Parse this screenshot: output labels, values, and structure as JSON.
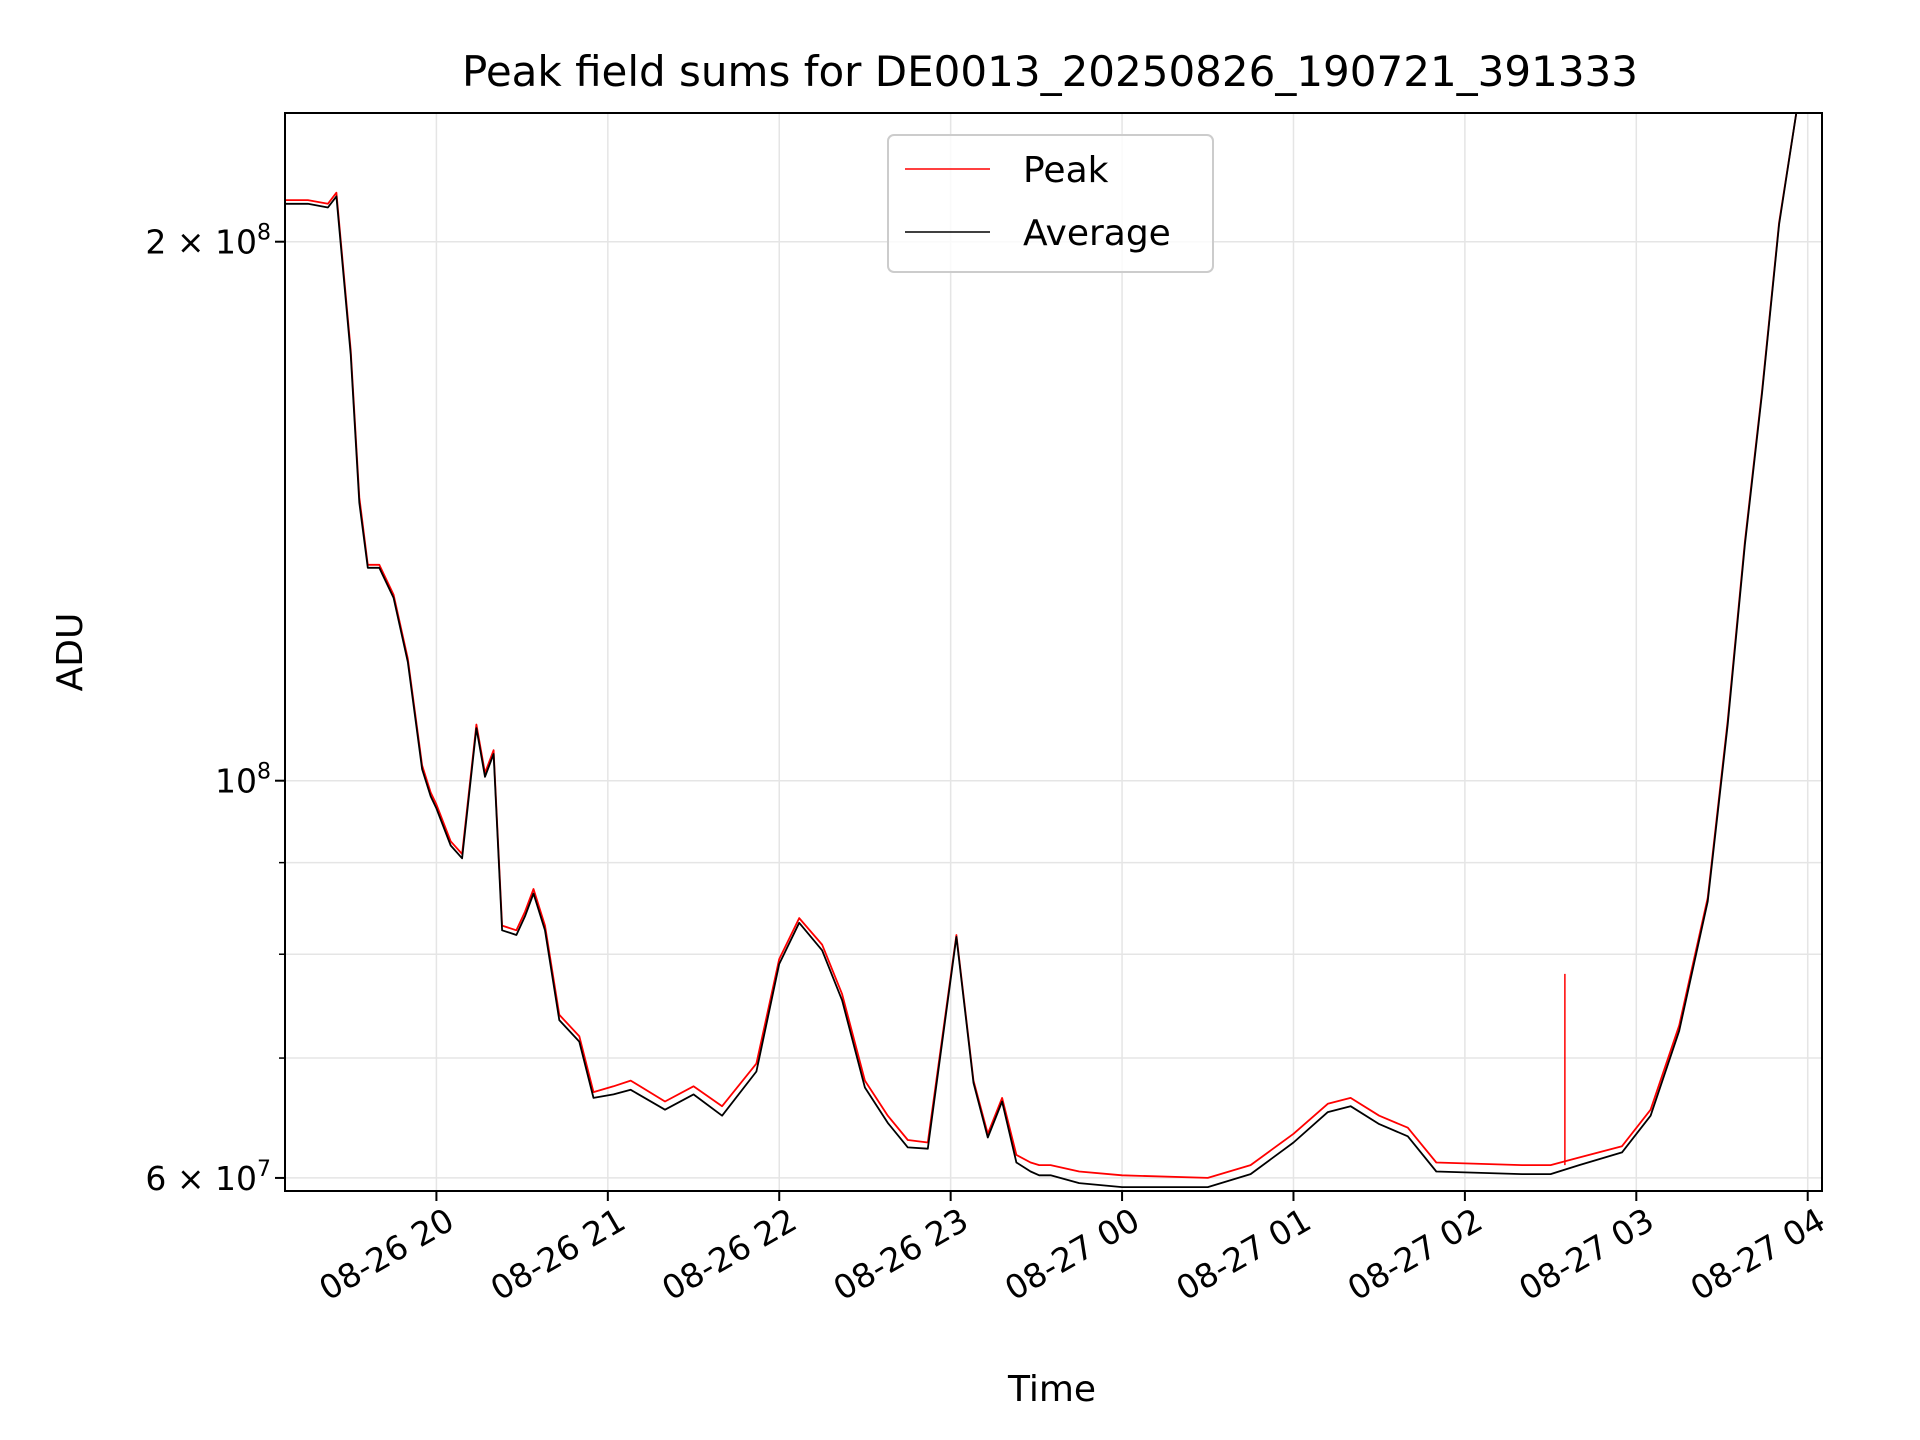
{
  "chart_data": {
    "type": "line",
    "title": "Peak field sums for DE0013_20250826_190721_391333",
    "xlabel": "Time",
    "ylabel": "ADU",
    "y_scale": "log",
    "xlim": [
      "2025-08-26 19:07",
      "2025-08-27 04:05"
    ],
    "ylim": [
      59000000,
      236000000
    ],
    "grid": true,
    "legend_position": "upper center",
    "x_ticks": [
      {
        "label": "08-26 20",
        "t": "2025-08-26 20:00"
      },
      {
        "label": "08-26 21",
        "t": "2025-08-26 21:00"
      },
      {
        "label": "08-26 22",
        "t": "2025-08-26 22:00"
      },
      {
        "label": "08-26 23",
        "t": "2025-08-26 23:00"
      },
      {
        "label": "08-27 00",
        "t": "2025-08-27 00:00"
      },
      {
        "label": "08-27 01",
        "t": "2025-08-27 01:00"
      },
      {
        "label": "08-27 02",
        "t": "2025-08-27 02:00"
      },
      {
        "label": "08-27 03",
        "t": "2025-08-27 03:00"
      },
      {
        "label": "08-27 04",
        "t": "2025-08-27 04:00"
      }
    ],
    "y_ticks": [
      {
        "value": 60000000,
        "label": "6 × 10",
        "exp": "7"
      },
      {
        "value": 100000000,
        "label": "10",
        "exp": "8"
      },
      {
        "value": 200000000,
        "label": "2 × 10",
        "exp": "8"
      }
    ],
    "y_minor_ticks": [
      70000000,
      80000000,
      90000000
    ],
    "series": [
      {
        "name": "Peak",
        "color": "#ff0000",
        "x": [
          "2025-08-26 19:07",
          "2025-08-26 19:15",
          "2025-08-26 19:22",
          "2025-08-26 19:25",
          "2025-08-26 19:30",
          "2025-08-26 19:33",
          "2025-08-26 19:36",
          "2025-08-26 19:40",
          "2025-08-26 19:45",
          "2025-08-26 19:50",
          "2025-08-26 19:55",
          "2025-08-26 19:58",
          "2025-08-26 20:00",
          "2025-08-26 20:05",
          "2025-08-26 20:09",
          "2025-08-26 20:14",
          "2025-08-26 20:17",
          "2025-08-26 20:20",
          "2025-08-26 20:23",
          "2025-08-26 20:28",
          "2025-08-26 20:31",
          "2025-08-26 20:34",
          "2025-08-26 20:38",
          "2025-08-26 20:43",
          "2025-08-26 20:50",
          "2025-08-26 20:55",
          "2025-08-26 21:02",
          "2025-08-26 21:08",
          "2025-08-26 21:20",
          "2025-08-26 21:30",
          "2025-08-26 21:40",
          "2025-08-26 21:52",
          "2025-08-26 22:00",
          "2025-08-26 22:07",
          "2025-08-26 22:15",
          "2025-08-26 22:22",
          "2025-08-26 22:30",
          "2025-08-26 22:38",
          "2025-08-26 22:45",
          "2025-08-26 22:52",
          "2025-08-26 23:02",
          "2025-08-26 23:08",
          "2025-08-26 23:13",
          "2025-08-26 23:18",
          "2025-08-26 23:23",
          "2025-08-26 23:28",
          "2025-08-26 23:31",
          "2025-08-26 23:35",
          "2025-08-26 23:45",
          "2025-08-27 00:00",
          "2025-08-27 00:30",
          "2025-08-27 00:45",
          "2025-08-27 01:00",
          "2025-08-27 01:12",
          "2025-08-27 01:20",
          "2025-08-27 01:30",
          "2025-08-27 01:40",
          "2025-08-27 01:50",
          "2025-08-27 02:20",
          "2025-08-27 02:30",
          "2025-08-27 02:40",
          "2025-08-27 02:55",
          "2025-08-27 03:05",
          "2025-08-27 03:15",
          "2025-08-27 03:25",
          "2025-08-27 03:32",
          "2025-08-27 03:38",
          "2025-08-27 03:44",
          "2025-08-27 03:50",
          "2025-08-27 03:56"
        ],
        "y": [
          211000000,
          211000000,
          210000000,
          213000000,
          174000000,
          144000000,
          132000000,
          132000000,
          127000000,
          117000000,
          102000000,
          98500000,
          97000000,
          92500000,
          91000000,
          107500000,
          101000000,
          104000000,
          83000000,
          82500000,
          84500000,
          87000000,
          83000000,
          74000000,
          72000000,
          67000000,
          67500000,
          68000000,
          66200000,
          67500000,
          65800000,
          69500000,
          79500000,
          83800000,
          81000000,
          76000000,
          68000000,
          65000000,
          63000000,
          62800000,
          82000000,
          68000000,
          63500000,
          66500000,
          61800000,
          61200000,
          61000000,
          61000000,
          60500000,
          60200000,
          60000000,
          61000000,
          63500000,
          66000000,
          66500000,
          65000000,
          64000000,
          61200000,
          61000000,
          61000000,
          61600000,
          62500000,
          65500000,
          73000000,
          86000000,
          108000000,
          136000000,
          165000000,
          205000000,
          236000000
        ]
      },
      {
        "name": "Average",
        "color": "#000000",
        "x": [
          "2025-08-26 19:07",
          "2025-08-26 19:15",
          "2025-08-26 19:22",
          "2025-08-26 19:25",
          "2025-08-26 19:30",
          "2025-08-26 19:33",
          "2025-08-26 19:36",
          "2025-08-26 19:40",
          "2025-08-26 19:45",
          "2025-08-26 19:50",
          "2025-08-26 19:55",
          "2025-08-26 19:58",
          "2025-08-26 20:00",
          "2025-08-26 20:05",
          "2025-08-26 20:09",
          "2025-08-26 20:14",
          "2025-08-26 20:17",
          "2025-08-26 20:20",
          "2025-08-26 20:23",
          "2025-08-26 20:28",
          "2025-08-26 20:31",
          "2025-08-26 20:34",
          "2025-08-26 20:38",
          "2025-08-26 20:43",
          "2025-08-26 20:50",
          "2025-08-26 20:55",
          "2025-08-26 21:02",
          "2025-08-26 21:08",
          "2025-08-26 21:20",
          "2025-08-26 21:30",
          "2025-08-26 21:40",
          "2025-08-26 21:52",
          "2025-08-26 22:00",
          "2025-08-26 22:07",
          "2025-08-26 22:15",
          "2025-08-26 22:22",
          "2025-08-26 22:30",
          "2025-08-26 22:38",
          "2025-08-26 22:45",
          "2025-08-26 22:52",
          "2025-08-26 23:02",
          "2025-08-26 23:08",
          "2025-08-26 23:13",
          "2025-08-26 23:18",
          "2025-08-26 23:23",
          "2025-08-26 23:28",
          "2025-08-26 23:31",
          "2025-08-26 23:35",
          "2025-08-26 23:45",
          "2025-08-27 00:00",
          "2025-08-27 00:30",
          "2025-08-27 00:45",
          "2025-08-27 01:00",
          "2025-08-27 01:12",
          "2025-08-27 01:20",
          "2025-08-27 01:30",
          "2025-08-27 01:40",
          "2025-08-27 01:50",
          "2025-08-27 02:20",
          "2025-08-27 02:30",
          "2025-08-27 02:40",
          "2025-08-27 02:55",
          "2025-08-27 03:05",
          "2025-08-27 03:15",
          "2025-08-27 03:25",
          "2025-08-27 03:32",
          "2025-08-27 03:38",
          "2025-08-27 03:44",
          "2025-08-27 03:50",
          "2025-08-27 03:56"
        ],
        "y": [
          210000000,
          210000000,
          209000000,
          212000000,
          173000000,
          143000000,
          131500000,
          131500000,
          126500000,
          116500000,
          101500000,
          98000000,
          96500000,
          92000000,
          90500000,
          107000000,
          100500000,
          103500000,
          82500000,
          82000000,
          84000000,
          86500000,
          82500000,
          73500000,
          71500000,
          66500000,
          66800000,
          67200000,
          65500000,
          66800000,
          65000000,
          68800000,
          79000000,
          83300000,
          80400000,
          75400000,
          67400000,
          64400000,
          62400000,
          62300000,
          81800000,
          67800000,
          63200000,
          66200000,
          61200000,
          60500000,
          60200000,
          60200000,
          59600000,
          59300000,
          59300000,
          60300000,
          62800000,
          65300000,
          65800000,
          64300000,
          63300000,
          60500000,
          60300000,
          60300000,
          61000000,
          62000000,
          65000000,
          72500000,
          85600000,
          107500000,
          135500000,
          164500000,
          204500000,
          236000000
        ]
      }
    ],
    "spikes": [
      {
        "series": "Peak",
        "t": "2025-08-27 02:35",
        "y": 78000000
      }
    ]
  }
}
